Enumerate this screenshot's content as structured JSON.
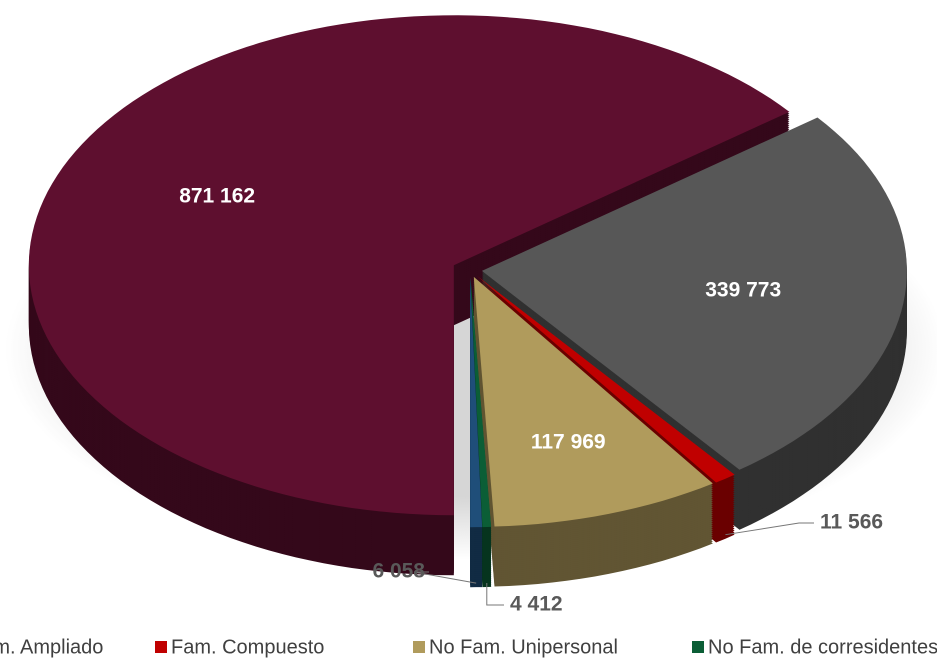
{
  "chart_data": {
    "type": "pie",
    "categories": [
      null,
      "Fam. Ampliado",
      "Fam. Compuesto",
      "No Fam. Unipersonal",
      "No Fam. de corresidentes",
      null
    ],
    "values": [
      871162,
      339773,
      11566,
      117969,
      4412,
      6058
    ],
    "value_labels": [
      "871 162",
      "339 773",
      "11 566",
      "117 969",
      "4 412",
      "6 058"
    ],
    "colors": [
      "#5e0f2f",
      "#575757",
      "#c00000",
      "#b09b5c",
      "#0b5e36",
      "#1f4e79"
    ],
    "legend": "bottom"
  }
}
